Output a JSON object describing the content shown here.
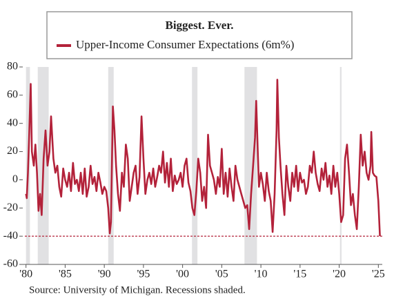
{
  "chart_data": {
    "type": "line",
    "title": "Biggest. Ever.",
    "annotation": "Source: University of Michigan. Recessions shaded.",
    "x": [
      1980.0,
      1980.1,
      1980.25,
      1980.4,
      1980.6,
      1980.75,
      1981.0,
      1981.2,
      1981.4,
      1981.6,
      1981.8,
      1982.0,
      1982.25,
      1982.5,
      1982.75,
      1983.0,
      1983.2,
      1983.5,
      1983.75,
      1984.0,
      1984.25,
      1984.5,
      1984.75,
      1985.0,
      1985.25,
      1985.5,
      1985.75,
      1986.0,
      1986.25,
      1986.5,
      1986.75,
      1987.0,
      1987.25,
      1987.5,
      1987.75,
      1988.0,
      1988.25,
      1988.5,
      1988.75,
      1989.0,
      1989.25,
      1989.5,
      1989.75,
      1990.0,
      1990.25,
      1990.5,
      1990.7,
      1990.85,
      1991.0,
      1991.1,
      1991.3,
      1991.5,
      1991.75,
      1992.0,
      1992.25,
      1992.5,
      1992.75,
      1993.0,
      1993.25,
      1993.5,
      1993.75,
      1994.0,
      1994.25,
      1994.5,
      1994.75,
      1995.0,
      1995.25,
      1995.5,
      1995.75,
      1996.0,
      1996.25,
      1996.5,
      1996.75,
      1997.0,
      1997.25,
      1997.5,
      1997.75,
      1998.0,
      1998.25,
      1998.5,
      1998.75,
      1999.0,
      1999.25,
      1999.5,
      1999.75,
      2000.0,
      2000.25,
      2000.5,
      2000.75,
      2001.0,
      2001.25,
      2001.5,
      2001.75,
      2002.0,
      2002.25,
      2002.5,
      2002.75,
      2003.0,
      2003.25,
      2003.5,
      2003.75,
      2004.0,
      2004.25,
      2004.5,
      2004.75,
      2005.0,
      2005.25,
      2005.5,
      2005.75,
      2006.0,
      2006.25,
      2006.5,
      2006.75,
      2007.0,
      2007.25,
      2007.5,
      2007.75,
      2008.0,
      2008.25,
      2008.5,
      2008.75,
      2009.0,
      2009.25,
      2009.4,
      2009.6,
      2009.75,
      2010.0,
      2010.25,
      2010.5,
      2010.75,
      2011.0,
      2011.25,
      2011.5,
      2011.75,
      2012.0,
      2012.1,
      2012.3,
      2012.5,
      2012.75,
      2013.0,
      2013.25,
      2013.5,
      2013.75,
      2014.0,
      2014.25,
      2014.5,
      2014.75,
      2015.0,
      2015.25,
      2015.5,
      2015.75,
      2016.0,
      2016.25,
      2016.5,
      2016.75,
      2017.0,
      2017.25,
      2017.5,
      2017.75,
      2018.0,
      2018.25,
      2018.5,
      2018.75,
      2019.0,
      2019.25,
      2019.5,
      2019.75,
      2020.0,
      2020.25,
      2020.5,
      2020.75,
      2021.0,
      2021.25,
      2021.5,
      2021.75,
      2022.0,
      2022.25,
      2022.5,
      2022.75,
      2023.0,
      2023.25,
      2023.5,
      2023.75,
      2024.0,
      2024.1,
      2024.3,
      2024.5,
      2024.75,
      2025.0,
      2025.2
    ],
    "series": [
      {
        "name": "Upper-Income Consumer Expectations (6m%)",
        "color": "#b3223a",
        "values": [
          -10,
          -13,
          5,
          30,
          68,
          20,
          10,
          25,
          5,
          -22,
          -10,
          -25,
          15,
          35,
          10,
          20,
          45,
          15,
          5,
          10,
          -5,
          -12,
          8,
          0,
          -5,
          5,
          -8,
          12,
          -3,
          0,
          -8,
          5,
          -10,
          8,
          -12,
          -5,
          10,
          -3,
          2,
          -8,
          5,
          -2,
          -10,
          -5,
          -8,
          -20,
          -38,
          -30,
          20,
          52,
          35,
          10,
          -10,
          -22,
          5,
          -5,
          25,
          15,
          -15,
          -5,
          5,
          10,
          -10,
          2,
          45,
          15,
          -10,
          0,
          5,
          -3,
          8,
          -5,
          2,
          10,
          5,
          20,
          -2,
          12,
          -5,
          15,
          -8,
          3,
          -3,
          0,
          5,
          -5,
          10,
          15,
          -2,
          -8,
          -20,
          -25,
          -8,
          15,
          5,
          -15,
          -5,
          -20,
          32,
          10,
          5,
          0,
          -10,
          2,
          -5,
          22,
          -10,
          5,
          -12,
          8,
          -5,
          -15,
          10,
          0,
          -5,
          -10,
          -15,
          -20,
          -18,
          -35,
          -10,
          10,
          30,
          56,
          20,
          -5,
          5,
          -3,
          -15,
          5,
          -8,
          -15,
          -37,
          -10,
          35,
          71,
          30,
          10,
          -10,
          -25,
          10,
          -5,
          -15,
          5,
          -5,
          10,
          -8,
          5,
          -2,
          0,
          -10,
          -5,
          10,
          5,
          20,
          5,
          -3,
          -8,
          8,
          0,
          12,
          -5,
          3,
          -10,
          10,
          -5,
          5,
          -10,
          -30,
          -25,
          15,
          25,
          5,
          -18,
          -10,
          -25,
          -35,
          -5,
          32,
          10,
          20,
          5,
          0,
          10,
          34,
          5,
          3,
          2,
          -15,
          -40
        ]
      }
    ],
    "recessions": [
      [
        1980.0,
        1980.5
      ],
      [
        1981.5,
        1982.9
      ],
      [
        1990.5,
        1991.2
      ],
      [
        2001.2,
        2001.9
      ],
      [
        2007.9,
        2009.5
      ],
      [
        2020.1,
        2020.3
      ]
    ],
    "reference_line": -40,
    "xlim": [
      1979.5,
      2025.5
    ],
    "xticks": [
      {
        "value": 1980,
        "label": "'80"
      },
      {
        "value": 1985,
        "label": "'85"
      },
      {
        "value": 1990,
        "label": "'90"
      },
      {
        "value": 1995,
        "label": "'95"
      },
      {
        "value": 2000,
        "label": "'00"
      },
      {
        "value": 2005,
        "label": "'05"
      },
      {
        "value": 2010,
        "label": "'10"
      },
      {
        "value": 2015,
        "label": "'15"
      },
      {
        "value": 2020,
        "label": "'20"
      },
      {
        "value": 2025,
        "label": "'25"
      }
    ],
    "ylim": [
      -60,
      80
    ],
    "yticks": [
      -60,
      -40,
      -20,
      0,
      20,
      40,
      60,
      80
    ]
  }
}
